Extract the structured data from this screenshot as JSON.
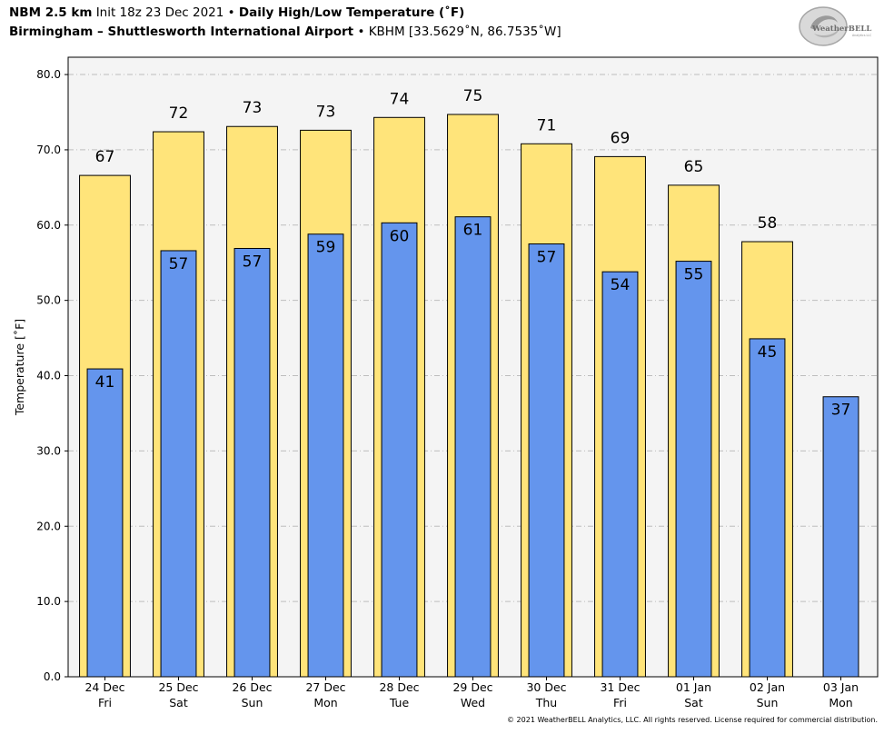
{
  "header": {
    "model": "NBM 2.5 km",
    "init": "Init 18z 23 Dec 2021",
    "bullet": "•",
    "product": "Daily High/Low Temperature (˚F)",
    "station": "Birmingham – Shuttlesworth International Airport",
    "station_meta": "• KBHM [33.5629˚N, 86.7535˚W]"
  },
  "logo": {
    "text": "WeatherBELL",
    "subtext": "Analytics LLC"
  },
  "footer": "© 2021 WeatherBELL Analytics, LLC. All rights reserved. License required for commercial distribution.",
  "colors": {
    "high": "#ffe47a",
    "low": "#6495ed",
    "plot_bg": "#f4f4f4",
    "grid": "#bdbdbd"
  },
  "chart_data": {
    "type": "bar",
    "ylabel": "Temperature [˚F]",
    "ylim": [
      0,
      80
    ],
    "yticks": [
      "0.0",
      "10.0",
      "20.0",
      "30.0",
      "40.0",
      "50.0",
      "60.0",
      "70.0",
      "80.0"
    ],
    "grid": true,
    "categories": [
      [
        "24 Dec",
        "Fri"
      ],
      [
        "25 Dec",
        "Sat"
      ],
      [
        "26 Dec",
        "Sun"
      ],
      [
        "27 Dec",
        "Mon"
      ],
      [
        "28 Dec",
        "Tue"
      ],
      [
        "29 Dec",
        "Wed"
      ],
      [
        "30 Dec",
        "Thu"
      ],
      [
        "31 Dec",
        "Fri"
      ],
      [
        "01 Jan",
        "Sat"
      ],
      [
        "02 Jan",
        "Sun"
      ],
      [
        "03 Jan",
        "Mon"
      ]
    ],
    "series": [
      {
        "values": [
          66.6,
          72.4,
          73.1,
          72.6,
          74.3,
          74.7,
          70.8,
          69.1,
          65.3,
          57.8,
          null
        ],
        "labels": [
          "67",
          "72",
          "73",
          "73",
          "74",
          "75",
          "71",
          "69",
          "65",
          "58",
          ""
        ]
      },
      {
        "values": [
          40.9,
          56.6,
          56.9,
          58.8,
          60.3,
          61.1,
          57.5,
          53.8,
          55.2,
          44.9,
          37.2
        ],
        "labels": [
          "41",
          "57",
          "57",
          "59",
          "60",
          "61",
          "57",
          "54",
          "55",
          "45",
          "37"
        ]
      }
    ]
  }
}
